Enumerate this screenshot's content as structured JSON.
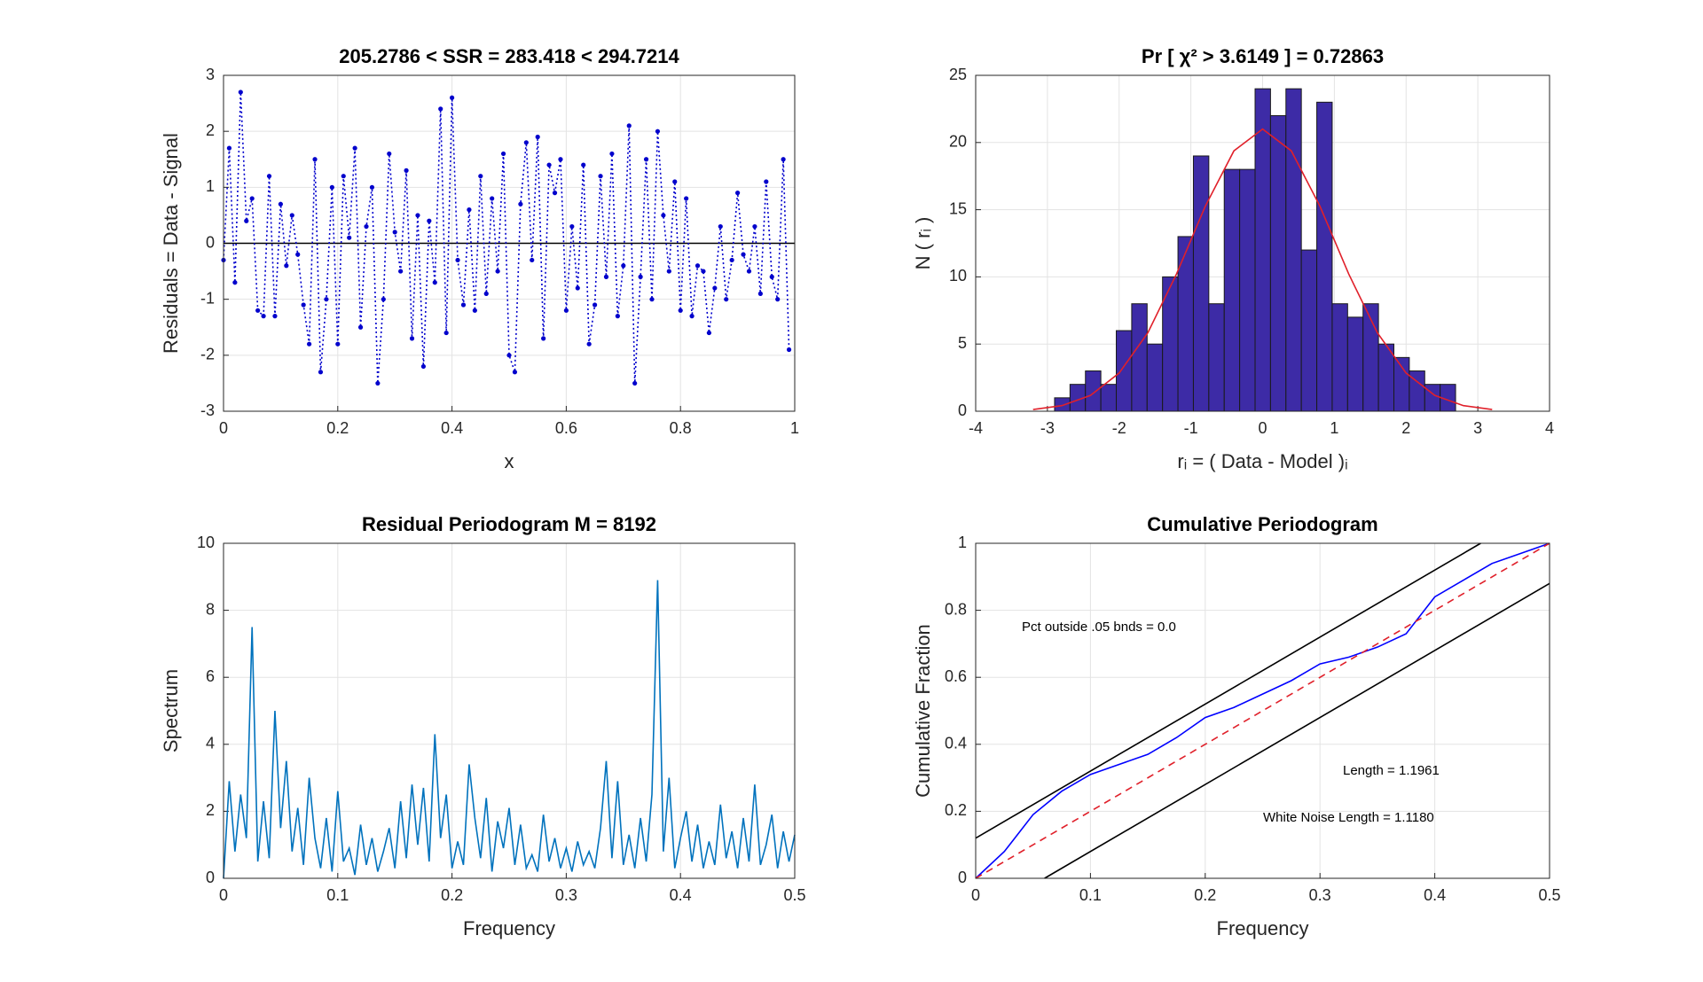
{
  "chart_data": [
    {
      "type": "line",
      "title": "205.2786  <  SSR = 283.418  <  294.7214",
      "xlabel": "x",
      "ylabel": "Residuals = Data - Signal",
      "xlim": [
        0,
        1
      ],
      "ylim": [
        -3,
        3
      ],
      "xticks": [
        0,
        0.2,
        0.4,
        0.6,
        0.8,
        1
      ],
      "yticks": [
        -3,
        -2,
        -1,
        0,
        1,
        2,
        3
      ],
      "grid": true,
      "hline": 0,
      "series": [
        {
          "color": "#0000cc",
          "line_style": "dotted",
          "markers": true,
          "x": [
            0,
            0.01,
            0.02,
            0.03,
            0.04,
            0.05,
            0.06,
            0.07,
            0.08,
            0.09,
            0.1,
            0.11,
            0.12,
            0.13,
            0.14,
            0.15,
            0.16,
            0.17,
            0.18,
            0.19,
            0.2,
            0.21,
            0.22,
            0.23,
            0.24,
            0.25,
            0.26,
            0.27,
            0.28,
            0.29,
            0.3,
            0.31,
            0.32,
            0.33,
            0.34,
            0.35,
            0.36,
            0.37,
            0.38,
            0.39,
            0.4,
            0.41,
            0.42,
            0.43,
            0.44,
            0.45,
            0.46,
            0.47,
            0.48,
            0.49,
            0.5,
            0.51,
            0.52,
            0.53,
            0.54,
            0.55,
            0.56,
            0.57,
            0.58,
            0.59,
            0.6,
            0.61,
            0.62,
            0.63,
            0.64,
            0.65,
            0.66,
            0.67,
            0.68,
            0.69,
            0.7,
            0.71,
            0.72,
            0.73,
            0.74,
            0.75,
            0.76,
            0.77,
            0.78,
            0.79,
            0.8,
            0.81,
            0.82,
            0.83,
            0.84,
            0.85,
            0.86,
            0.87,
            0.88,
            0.89,
            0.9,
            0.91,
            0.92,
            0.93,
            0.94,
            0.95,
            0.96,
            0.97,
            0.98,
            0.99
          ],
          "values": [
            -0.3,
            1.7,
            -0.7,
            2.7,
            0.4,
            0.8,
            -1.2,
            -1.3,
            1.2,
            -1.3,
            0.7,
            -0.4,
            0.5,
            -0.2,
            -1.1,
            -1.8,
            1.5,
            -2.3,
            -1.0,
            1.0,
            -1.8,
            1.2,
            0.1,
            1.7,
            -1.5,
            0.3,
            1.0,
            -2.5,
            -1.0,
            1.6,
            0.2,
            -0.5,
            1.3,
            -1.7,
            0.5,
            -2.2,
            0.4,
            -0.7,
            2.4,
            -1.6,
            2.6,
            -0.3,
            -1.1,
            0.6,
            -1.2,
            1.2,
            -0.9,
            0.8,
            -0.5,
            1.6,
            -2.0,
            -2.3,
            0.7,
            1.8,
            -0.3,
            1.9,
            -1.7,
            1.4,
            0.9,
            1.5,
            -1.2,
            0.3,
            -0.8,
            1.4,
            -1.8,
            -1.1,
            1.2,
            -0.6,
            1.6,
            -1.3,
            -0.4,
            2.1,
            -2.5,
            -0.6,
            1.5,
            -1.0,
            2.0,
            0.5,
            -0.5,
            1.1,
            -1.2,
            0.8,
            -1.3,
            -0.4,
            -0.5,
            -1.6,
            -0.8,
            0.3,
            -1.0,
            -0.3,
            0.9,
            -0.2,
            -0.5,
            0.3,
            -0.9,
            1.1,
            -0.6,
            -1.0,
            1.5,
            -1.9
          ]
        }
      ]
    },
    {
      "type": "histogram",
      "title": "Pr [ χ² > 3.6149 ] = 0.72863",
      "xlabel": "rᵢ = ( Data - Model )ᵢ",
      "ylabel": "N ( rᵢ )",
      "xlim": [
        -4,
        4
      ],
      "ylim": [
        0,
        25
      ],
      "xticks": [
        -4,
        -3,
        -2,
        -1,
        0,
        1,
        2,
        3,
        4
      ],
      "yticks": [
        0,
        5,
        10,
        15,
        20,
        25
      ],
      "grid": true,
      "color": "#3d2ba6",
      "bins": [
        -2.9,
        -2.685,
        -2.47,
        -2.255,
        -2.04,
        -1.825,
        -1.61,
        -1.395,
        -1.18,
        -0.965,
        -0.75,
        -0.535,
        -0.32,
        -0.105,
        0.11,
        0.325,
        0.54,
        0.755,
        0.97,
        1.185,
        1.4,
        1.615,
        1.83,
        2.045,
        2.26,
        2.475,
        2.69
      ],
      "counts": [
        1,
        2,
        3,
        2,
        6,
        8,
        5,
        10,
        13,
        19,
        8,
        18,
        18,
        24,
        22,
        24,
        12,
        23,
        8,
        7,
        8,
        5,
        4,
        3,
        2,
        2
      ],
      "series": [
        {
          "color": "#e0202a",
          "line_style": "solid",
          "markers": false,
          "x": [
            -3.2,
            -2.8,
            -2.4,
            -2.0,
            -1.6,
            -1.2,
            -0.8,
            -0.4,
            0,
            0.4,
            0.8,
            1.2,
            1.6,
            2.0,
            2.4,
            2.8,
            3.2
          ],
          "values": [
            0.126,
            0.415,
            1.178,
            2.842,
            5.838,
            10.22,
            15.25,
            19.38,
            21,
            19.38,
            15.25,
            10.22,
            5.838,
            2.842,
            1.178,
            0.415,
            0.126
          ]
        }
      ]
    },
    {
      "type": "line",
      "title": "Residual Periodogram  M = 8192",
      "xlabel": "Frequency",
      "ylabel": "Spectrum",
      "xlim": [
        0,
        0.5
      ],
      "ylim": [
        0,
        10
      ],
      "xticks": [
        0,
        0.1,
        0.2,
        0.3,
        0.4,
        0.5
      ],
      "yticks": [
        0,
        2,
        4,
        6,
        8,
        10
      ],
      "grid": true,
      "series": [
        {
          "color": "#0072bd",
          "line_style": "solid",
          "markers": false,
          "x": [
            0,
            0.005,
            0.01,
            0.015,
            0.02,
            0.025,
            0.03,
            0.035,
            0.04,
            0.045,
            0.05,
            0.055,
            0.06,
            0.065,
            0.07,
            0.075,
            0.08,
            0.085,
            0.09,
            0.095,
            0.1,
            0.105,
            0.11,
            0.115,
            0.12,
            0.125,
            0.13,
            0.135,
            0.14,
            0.145,
            0.15,
            0.155,
            0.16,
            0.165,
            0.17,
            0.175,
            0.18,
            0.185,
            0.19,
            0.195,
            0.2,
            0.205,
            0.21,
            0.215,
            0.22,
            0.225,
            0.23,
            0.235,
            0.24,
            0.245,
            0.25,
            0.255,
            0.26,
            0.265,
            0.27,
            0.275,
            0.28,
            0.285,
            0.29,
            0.295,
            0.3,
            0.305,
            0.31,
            0.315,
            0.32,
            0.325,
            0.33,
            0.335,
            0.34,
            0.345,
            0.35,
            0.355,
            0.36,
            0.365,
            0.37,
            0.375,
            0.38,
            0.385,
            0.39,
            0.395,
            0.4,
            0.405,
            0.41,
            0.415,
            0.42,
            0.425,
            0.43,
            0.435,
            0.44,
            0.445,
            0.45,
            0.455,
            0.46,
            0.465,
            0.47,
            0.475,
            0.48,
            0.485,
            0.49,
            0.495,
            0.5
          ],
          "values": [
            0,
            2.9,
            0.8,
            2.5,
            1.2,
            7.5,
            0.5,
            2.3,
            0.6,
            5.0,
            1.5,
            3.5,
            0.8,
            2.1,
            0.4,
            3.0,
            1.2,
            0.3,
            1.8,
            0.2,
            2.6,
            0.5,
            0.9,
            0.1,
            1.6,
            0.4,
            1.2,
            0.2,
            0.8,
            1.5,
            0.3,
            2.3,
            0.6,
            2.8,
            1.0,
            2.7,
            0.5,
            4.3,
            1.2,
            2.5,
            0.3,
            1.1,
            0.4,
            3.4,
            1.8,
            0.6,
            2.4,
            0.2,
            1.7,
            0.9,
            2.1,
            0.4,
            1.6,
            0.3,
            0.7,
            0.2,
            1.9,
            0.5,
            1.2,
            0.3,
            0.9,
            0.2,
            1.1,
            0.4,
            0.8,
            0.3,
            1.5,
            3.5,
            0.6,
            2.9,
            0.4,
            1.3,
            0.3,
            1.8,
            0.5,
            2.5,
            8.9,
            0.8,
            3.0,
            0.3,
            1.2,
            2.0,
            0.5,
            1.6,
            0.3,
            1.1,
            0.4,
            2.2,
            0.6,
            1.4,
            0.3,
            1.8,
            0.5,
            2.8,
            0.4,
            1.0,
            1.9,
            0.3,
            1.4,
            0.5,
            1.3
          ]
        }
      ]
    },
    {
      "type": "line",
      "title": "Cumulative Periodogram",
      "xlabel": "Frequency",
      "ylabel": "Cumulative Fraction",
      "xlim": [
        0,
        0.5
      ],
      "ylim": [
        0,
        1
      ],
      "xticks": [
        0,
        0.1,
        0.2,
        0.3,
        0.4,
        0.5
      ],
      "yticks": [
        0,
        0.2,
        0.4,
        0.6,
        0.8,
        1
      ],
      "grid": true,
      "annotations": [
        "Pct outside .05 bnds =  0.0",
        "Length = 1.1961",
        "White Noise Length = 1.1180"
      ],
      "series": [
        {
          "color": "#0000ff",
          "line_style": "solid",
          "markers": false,
          "x": [
            0,
            0.025,
            0.05,
            0.075,
            0.1,
            0.125,
            0.15,
            0.175,
            0.2,
            0.225,
            0.25,
            0.275,
            0.3,
            0.325,
            0.35,
            0.375,
            0.4,
            0.425,
            0.45,
            0.475,
            0.5
          ],
          "values": [
            0,
            0.08,
            0.19,
            0.26,
            0.31,
            0.34,
            0.37,
            0.42,
            0.48,
            0.51,
            0.55,
            0.59,
            0.64,
            0.66,
            0.69,
            0.73,
            0.84,
            0.89,
            0.94,
            0.97,
            1.0
          ]
        },
        {
          "color": "#e0202a",
          "line_style": "dashed",
          "markers": false,
          "x": [
            0,
            0.5
          ],
          "values": [
            0,
            1
          ]
        },
        {
          "color": "#000000",
          "line_style": "solid",
          "markers": false,
          "x": [
            0,
            0.44
          ],
          "values": [
            0.12,
            1
          ]
        },
        {
          "color": "#000000",
          "line_style": "solid",
          "markers": false,
          "x": [
            0.06,
            0.5
          ],
          "values": [
            0,
            0.88
          ]
        }
      ]
    }
  ]
}
